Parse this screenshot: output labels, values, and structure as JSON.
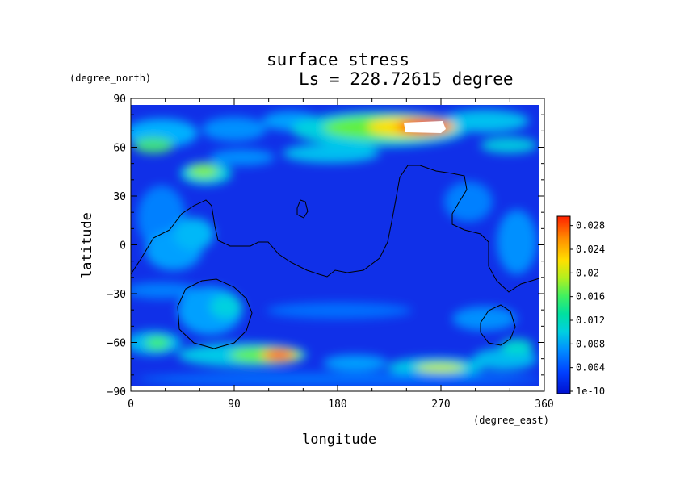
{
  "chart_data": {
    "type": "heatmap",
    "title": "surface stress",
    "subtitle": "Ls = 228.72615 degree",
    "xlabel": "longitude",
    "ylabel": "latitude",
    "x_unit": "(degree_east)",
    "y_unit": "(degree_north)",
    "xlim": [
      0,
      360
    ],
    "ylim": [
      -90,
      90
    ],
    "x_ticks": [
      "0",
      "90",
      "180",
      "270",
      "360"
    ],
    "y_ticks": [
      "90",
      "60",
      "30",
      "0",
      "−30",
      "−60",
      "−90"
    ],
    "colorbar": {
      "labels": [
        "0.028",
        "0.024",
        "0.02",
        "0.016",
        "0.012",
        "0.008",
        "0.004",
        "1e-10"
      ],
      "values": [
        0.028,
        0.024,
        0.02,
        0.016,
        0.012,
        0.008,
        0.004,
        1e-10
      ],
      "range": [
        0,
        0.03
      ],
      "colors": [
        "#0010d0",
        "#0040ff",
        "#0090ff",
        "#00d0e0",
        "#00e0a0",
        "#40f060",
        "#b0f020",
        "#ffe000",
        "#ff9000",
        "#ff2000"
      ]
    },
    "features": [
      {
        "lon": [
          235,
          275
        ],
        "lat": [
          65,
          80
        ],
        "value": 0.03
      },
      {
        "lon": [
          200,
          300
        ],
        "lat": [
          60,
          85
        ],
        "value": 0.018
      },
      {
        "lon": [
          110,
          150
        ],
        "lat": [
          -72,
          -62
        ],
        "value": 0.02
      },
      {
        "lon": [
          240,
          290
        ],
        "lat": [
          -78,
          -70
        ],
        "value": 0.016
      },
      {
        "lon": [
          50,
          85
        ],
        "lat": [
          40,
          55
        ],
        "value": 0.015
      },
      {
        "lon": [
          0,
          40
        ],
        "lat": [
          55,
          75
        ],
        "value": 0.012
      }
    ]
  }
}
